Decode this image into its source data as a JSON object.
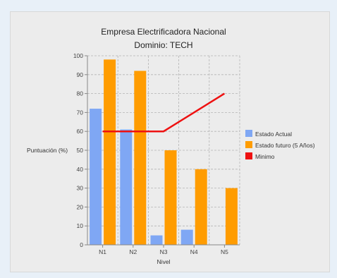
{
  "chart_data": {
    "type": "bar",
    "title": "Empresa Electrificadora Nacional",
    "subtitle": "Dominio: TECH",
    "xlabel": "Nivel",
    "ylabel": "Puntuación (%)",
    "categories": [
      "N1",
      "N2",
      "N3",
      "N4",
      "N5"
    ],
    "ylim": [
      0,
      100
    ],
    "yticks": [
      0,
      10,
      20,
      30,
      40,
      50,
      60,
      70,
      80,
      90,
      100
    ],
    "grid": true,
    "legend_position": "right",
    "series": [
      {
        "name": "Estado Actual",
        "kind": "bar",
        "color": "#7fa7f4",
        "values": [
          72,
          61,
          5,
          8,
          0
        ]
      },
      {
        "name": "Estado futuro (5 Años)",
        "kind": "bar",
        "color": "#ff9c00",
        "values": [
          98,
          92,
          50,
          40,
          30
        ]
      },
      {
        "name": "Minimo",
        "kind": "line",
        "color": "#ee1111",
        "values": [
          60,
          60,
          60,
          70,
          80
        ]
      }
    ]
  }
}
